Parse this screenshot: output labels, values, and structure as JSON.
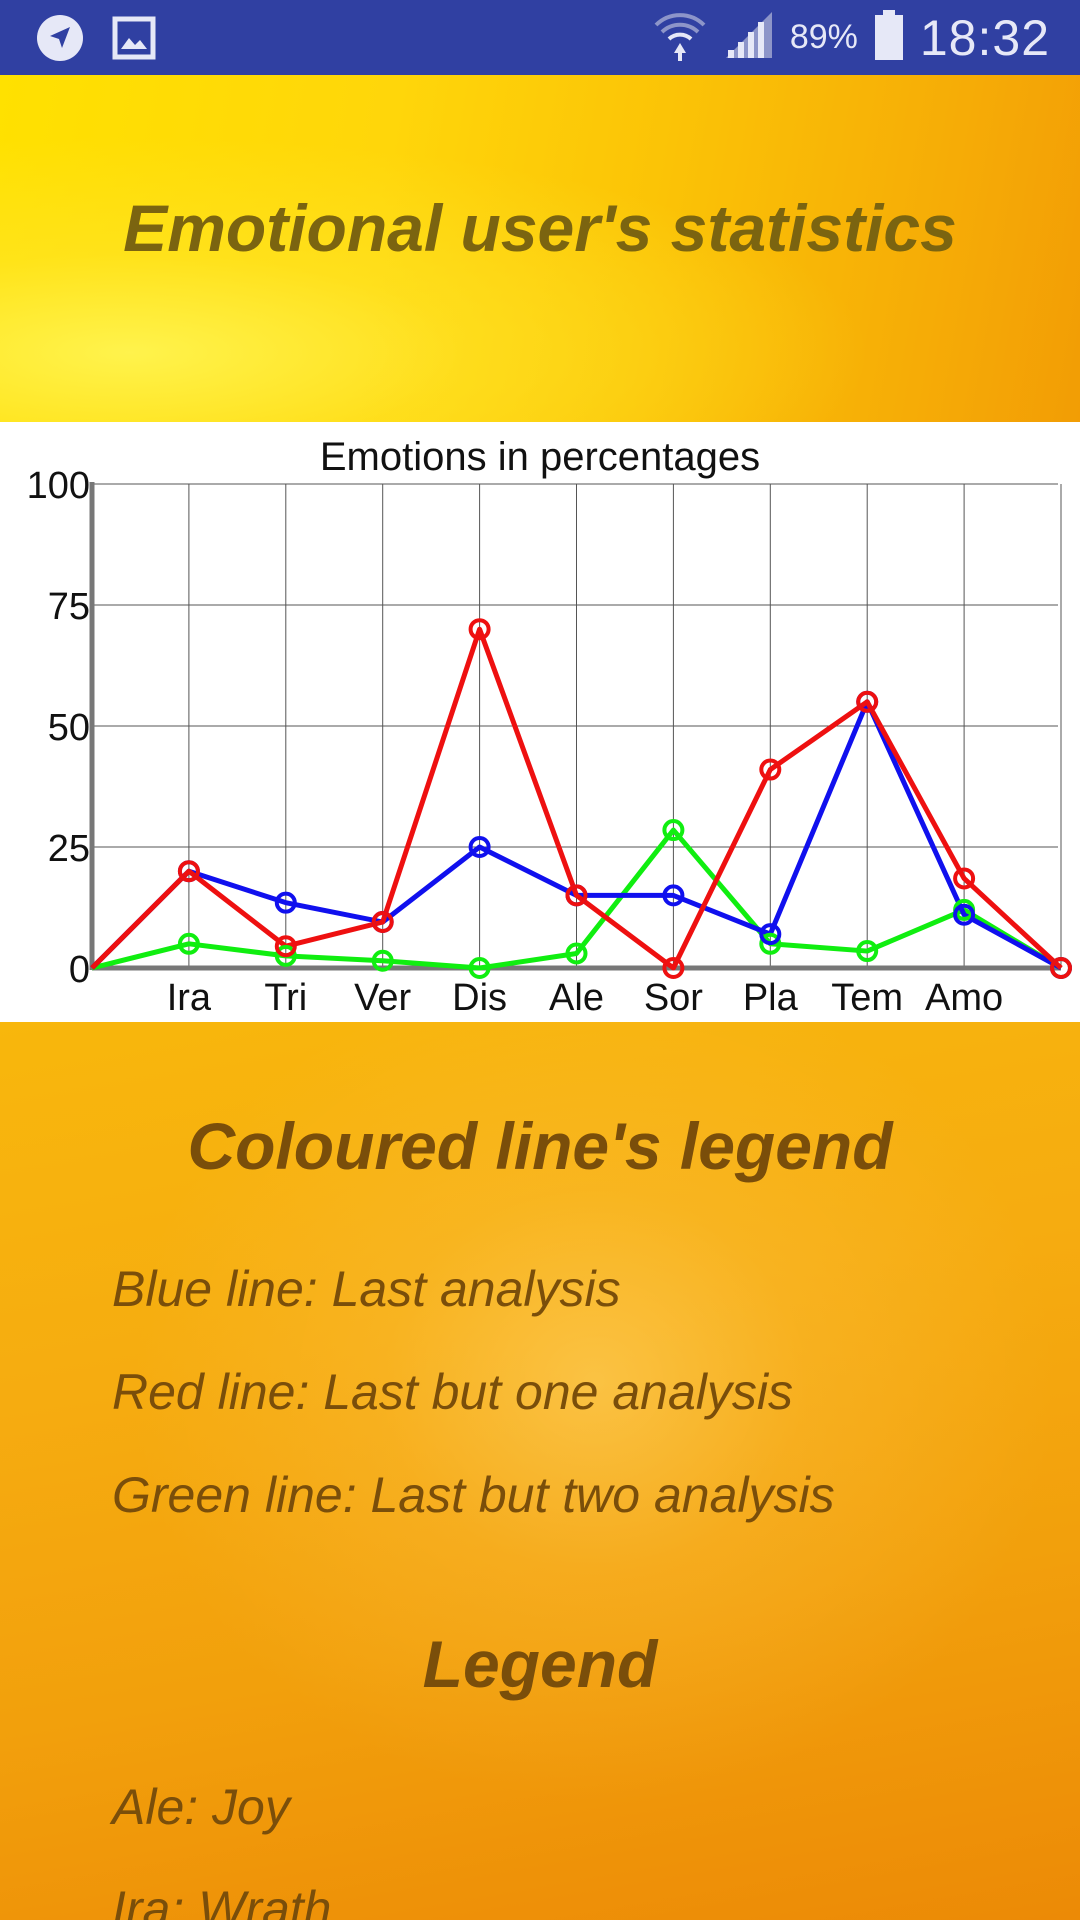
{
  "status_bar": {
    "battery": "89%",
    "time": "18:32",
    "icons": [
      "navigation-icon",
      "image-icon",
      "wifi-icon",
      "signal-icon",
      "battery-icon"
    ]
  },
  "header": {
    "title": "Emotional user's statistics"
  },
  "chart_data": {
    "type": "line",
    "title": "Emotions in percentages",
    "xlabel": "",
    "ylabel": "",
    "categories": [
      "",
      "Ira",
      "Tri",
      "Ver",
      "Dis",
      "Ale",
      "Sor",
      "Pla",
      "Tem",
      "Amo",
      ""
    ],
    "ylim": [
      0,
      100
    ],
    "yticks": [
      0,
      25,
      50,
      75,
      100
    ],
    "grid": true,
    "series": [
      {
        "color": "#1010ee",
        "values": [
          0,
          20,
          13.5,
          9.5,
          25,
          15,
          15,
          7,
          55,
          11,
          0
        ]
      },
      {
        "color": "#ee1010",
        "values": [
          0,
          20,
          4.5,
          9.5,
          70,
          15,
          0,
          41,
          55,
          18.5,
          0
        ]
      },
      {
        "color": "#10ee10",
        "values": [
          0,
          5,
          2.5,
          1.5,
          0,
          3,
          28.5,
          5,
          3.5,
          12,
          0
        ]
      }
    ]
  },
  "colored_legend": {
    "title": "Coloured line's legend",
    "items": [
      "Blue line: Last analysis",
      "Red line: Last but one analysis",
      "Green line: Last but two analysis"
    ]
  },
  "legend": {
    "title": "Legend",
    "items": [
      "Ale: Joy",
      "Ira: Wrath"
    ]
  }
}
